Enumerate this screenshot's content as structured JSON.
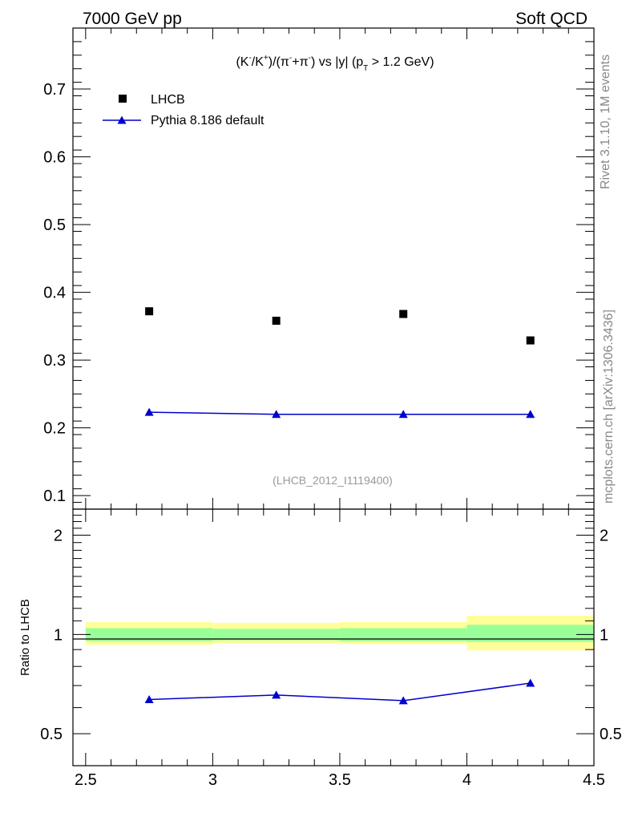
{
  "header": {
    "left": "7000 GeV pp",
    "right": "Soft QCD"
  },
  "side_labels": {
    "rivet": "Rivet 3.1.10,  1M events",
    "mcplots": "mcplots.cern.ch [arXiv:1306.3436]"
  },
  "chart_data": [
    {
      "type": "scatter",
      "title": "(K⁻/K⁺)/(π⁻+π⁻) vs |y| (p_T > 1.2 GeV)",
      "title_parts": {
        "a": "(K",
        "a_sup": "-",
        "b": "/K",
        "b_sup": "+",
        "c": ")/(π",
        "c_sup": "-",
        "d": "+π",
        "d_sup": "-",
        "e": ") vs |y| (p",
        "e_sub": "T",
        "f": " > 1.2 GeV)"
      },
      "analysis_id": "(LHCB_2012_I1119400)",
      "xlim": [
        2.45,
        4.5
      ],
      "ylim": [
        0.08,
        0.79
      ],
      "yticks": [
        0.1,
        0.2,
        0.3,
        0.4,
        0.5,
        0.6,
        0.7
      ],
      "ytick_labels": [
        "0.1",
        "0.2",
        "0.3",
        "0.4",
        "0.5",
        "0.6",
        "0.7"
      ],
      "legend_position": "top-left",
      "series": [
        {
          "name": "LHCB",
          "marker": "square",
          "color": "#000000",
          "x": [
            2.75,
            3.25,
            3.75,
            4.25
          ],
          "y": [
            0.372,
            0.358,
            0.368,
            0.329
          ]
        },
        {
          "name": "Pythia 8.186 default",
          "marker": "triangle",
          "color": "#0000cc",
          "x": [
            2.75,
            3.25,
            3.75,
            4.25
          ],
          "y": [
            0.223,
            0.22,
            0.22,
            0.22
          ]
        }
      ]
    },
    {
      "type": "line",
      "ylabel": "Ratio to LHCB",
      "scale": "log",
      "xlim": [
        2.45,
        4.5
      ],
      "ylim": [
        0.4,
        2.4
      ],
      "yticks": [
        0.5,
        1,
        2
      ],
      "ytick_labels": [
        "0.5",
        "1",
        "2"
      ],
      "xticks": [
        2.5,
        3,
        3.5,
        4,
        4.5
      ],
      "xtick_labels": [
        "2.5",
        "3",
        "3.5",
        "4",
        "4.5"
      ],
      "bands": [
        {
          "x": [
            2.5,
            3.0
          ],
          "inner": [
            0.955,
            1.045
          ],
          "outer": [
            0.93,
            1.09
          ]
        },
        {
          "x": [
            3.0,
            3.5
          ],
          "inner": [
            0.96,
            1.04
          ],
          "outer": [
            0.94,
            1.085
          ]
        },
        {
          "x": [
            3.5,
            4.0
          ],
          "inner": [
            0.955,
            1.045
          ],
          "outer": [
            0.935,
            1.09
          ]
        },
        {
          "x": [
            4.0,
            4.5
          ],
          "inner": [
            0.95,
            1.07
          ],
          "outer": [
            0.895,
            1.14
          ]
        }
      ],
      "band_colors": {
        "inner": "#99ff99",
        "outer": "#ffff99"
      },
      "series": [
        {
          "name": "Pythia 8.186 default",
          "color": "#0000cc",
          "x": [
            2.75,
            3.25,
            3.75,
            4.25
          ],
          "y": [
            0.635,
            0.655,
            0.63,
            0.712
          ]
        }
      ]
    }
  ]
}
